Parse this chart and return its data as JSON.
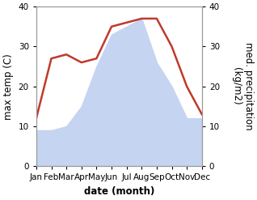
{
  "months": [
    "Jan",
    "Feb",
    "Mar",
    "Apr",
    "May",
    "Jun",
    "Jul",
    "Aug",
    "Sep",
    "Oct",
    "Nov",
    "Dec"
  ],
  "month_x": [
    1,
    2,
    3,
    4,
    5,
    6,
    7,
    8,
    9,
    10,
    11,
    12
  ],
  "temperature": [
    12,
    27,
    28,
    26,
    27,
    35,
    36,
    37,
    37,
    30,
    20,
    13
  ],
  "precipitation": [
    9,
    9,
    10,
    15,
    25,
    33,
    35,
    37,
    26,
    20,
    12,
    12
  ],
  "temp_color": "#c0392b",
  "precip_color": "#c5d4f0",
  "background_color": "#ffffff",
  "ylabel_left": "max temp (C)",
  "ylabel_right": "med. precipitation\n(kg/m2)",
  "xlabel": "date (month)",
  "ylim": [
    0,
    40
  ],
  "yticks": [
    0,
    10,
    20,
    30,
    40
  ],
  "label_fontsize": 8.5,
  "tick_fontsize": 7.5,
  "line_width": 1.8
}
